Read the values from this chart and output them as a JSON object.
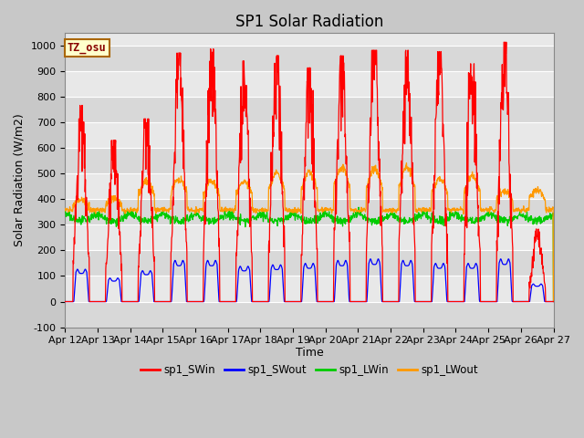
{
  "title": "SP1 Solar Radiation",
  "ylabel": "Solar Radiation (W/m2)",
  "xlabel": "Time",
  "ylim": [
    -100,
    1050
  ],
  "xlim": [
    0,
    15
  ],
  "xtick_labels": [
    "Apr 12",
    "Apr 13",
    "Apr 14",
    "Apr 15",
    "Apr 16",
    "Apr 17",
    "Apr 18",
    "Apr 19",
    "Apr 20",
    "Apr 21",
    "Apr 22",
    "Apr 23",
    "Apr 24",
    "Apr 25",
    "Apr 26",
    "Apr 27"
  ],
  "ytick_values": [
    -100,
    0,
    100,
    200,
    300,
    400,
    500,
    600,
    700,
    800,
    900,
    1000
  ],
  "fig_bg_color": "#c8c8c8",
  "plot_bg_color": "#e8e8e8",
  "band_colors": [
    "#d8d8d8",
    "#e8e8e8"
  ],
  "grid_color": "#ffffff",
  "annotation_text": "TZ_osu",
  "annotation_bg": "#ffffcc",
  "annotation_border": "#aa6600",
  "colors": {
    "sp1_SWin": "#ff0000",
    "sp1_SWout": "#0000ff",
    "sp1_LWin": "#00cc00",
    "sp1_LWout": "#ff9900"
  },
  "legend_labels": [
    "sp1_SWin",
    "sp1_SWout",
    "sp1_LWin",
    "sp1_LWout"
  ],
  "title_fontsize": 12,
  "label_fontsize": 9,
  "tick_fontsize": 8,
  "swi_peaks": [
    730,
    600,
    680,
    925,
    940,
    895,
    915,
    870,
    915,
    935,
    935,
    930,
    885,
    965,
    270
  ],
  "swo_peaks": [
    110,
    80,
    105,
    140,
    140,
    120,
    125,
    130,
    140,
    145,
    140,
    130,
    130,
    145,
    60
  ],
  "lwo_peaks": [
    395,
    400,
    470,
    480,
    470,
    470,
    505,
    505,
    525,
    520,
    525,
    480,
    490,
    435,
    435
  ],
  "lwin_base": 345
}
